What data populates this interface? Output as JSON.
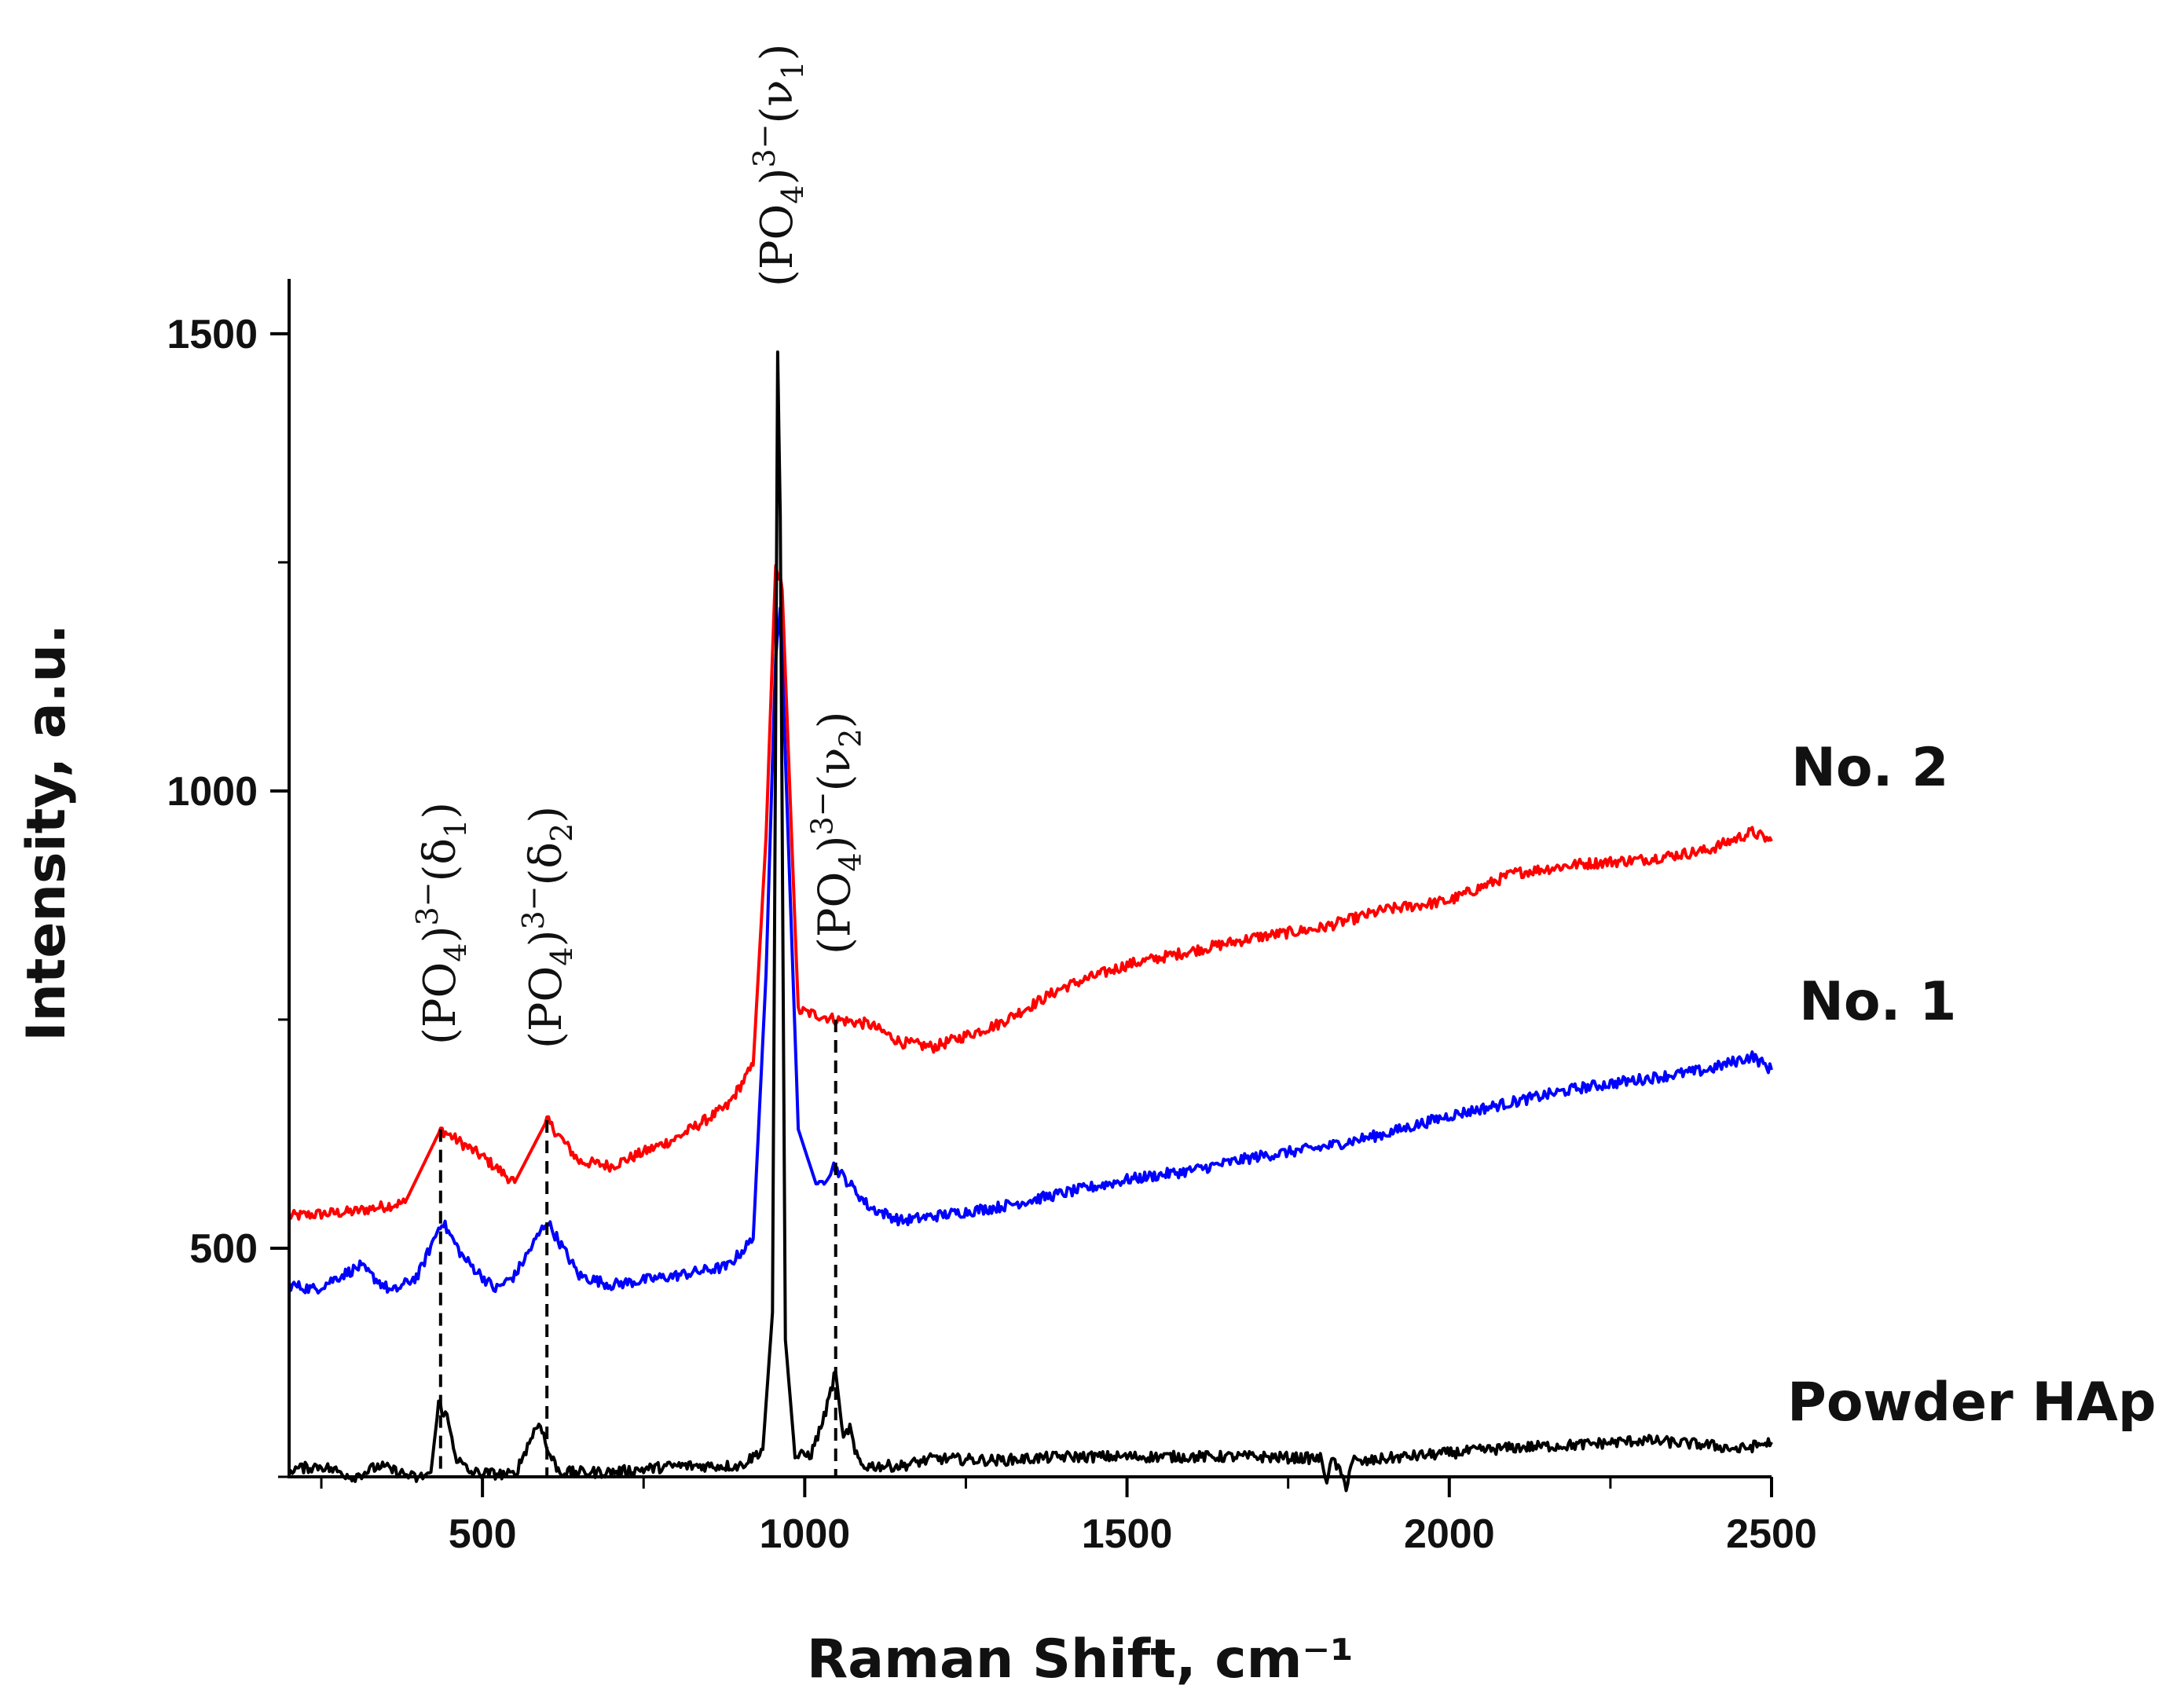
{
  "chart_data": {
    "type": "line",
    "title": "",
    "xlabel": "Raman Shift, cm⁻¹",
    "ylabel": "Intensity, a.u.",
    "xlim": [
      200,
      2500
    ],
    "ylim": [
      250,
      1560
    ],
    "x_ticks": [
      500,
      1000,
      1500,
      2000,
      2500
    ],
    "x_tick_labels": [
      "500",
      "1000",
      "1500",
      "2000",
      "2500"
    ],
    "y_ticks": [
      500,
      1000,
      1500
    ],
    "y_tick_labels": [
      "500",
      "1000",
      "1500"
    ],
    "grid": false,
    "series": [
      {
        "name": "No. 2",
        "color": "#ff0000",
        "x": [
          200,
          300,
          380,
          435,
          500,
          550,
          600,
          650,
          700,
          800,
          880,
          920,
          940,
          955,
          965,
          990,
          1050,
          1100,
          1150,
          1200,
          1300,
          1400,
          1500,
          1600,
          1700,
          1800,
          1900,
          2000,
          2100,
          2200,
          2300,
          2400,
          2470,
          2500
        ],
        "values": [
          535,
          540,
          550,
          630,
          600,
          572,
          640,
          595,
          590,
          620,
          655,
          700,
          950,
          1250,
          1220,
          760,
          750,
          745,
          725,
          720,
          745,
          785,
          810,
          825,
          840,
          850,
          870,
          880,
          910,
          920,
          925,
          935,
          955,
          945
        ]
      },
      {
        "name": "No. 1",
        "color": "#0000ff",
        "x": [
          200,
          240,
          280,
          310,
          360,
          400,
          437,
          470,
          520,
          550,
          600,
          650,
          700,
          800,
          880,
          920,
          940,
          955,
          962,
          990,
          1020,
          1045,
          1070,
          1100,
          1150,
          1200,
          1300,
          1400,
          1500,
          1600,
          1700,
          1800,
          1900,
          2000,
          2100,
          2200,
          2300,
          2400,
          2470,
          2500
        ],
        "values": [
          460,
          455,
          470,
          480,
          452,
          470,
          530,
          490,
          455,
          470,
          530,
          470,
          460,
          470,
          480,
          510,
          800,
          1150,
          1200,
          630,
          565,
          590,
          570,
          545,
          530,
          535,
          545,
          560,
          575,
          585,
          600,
          610,
          625,
          645,
          660,
          675,
          685,
          695,
          710,
          695
        ]
      },
      {
        "name": "Powder HAp",
        "color": "#000000",
        "x": [
          200,
          250,
          300,
          340,
          400,
          420,
          432,
          445,
          460,
          480,
          550,
          580,
          590,
          600,
          620,
          700,
          800,
          900,
          935,
          950,
          958,
          962,
          970,
          985,
          1010,
          1030,
          1048,
          1060,
          1070,
          1078,
          1090,
          1150,
          1200,
          1300,
          1400,
          1500,
          1600,
          1700,
          1800,
          1810,
          1820,
          1840,
          1850,
          1860,
          1900,
          2000,
          2100,
          2200,
          2300,
          2400,
          2450,
          2500
        ],
        "values": [
          258,
          262,
          250,
          262,
          248,
          255,
          330,
          315,
          270,
          255,
          252,
          300,
          310,
          280,
          255,
          255,
          262,
          262,
          280,
          430,
          1480,
          1300,
          400,
          272,
          275,
          315,
          365,
          290,
          305,
          275,
          262,
          262,
          270,
          268,
          272,
          272,
          272,
          272,
          270,
          248,
          270,
          240,
          270,
          265,
          270,
          276,
          282,
          285,
          290,
          285,
          280,
          288
        ]
      }
    ],
    "annotations": [
      {
        "text_main": "(PO",
        "text_sub": "4",
        "text_sup": "3−",
        "text_paren": "(δ",
        "text_psub": "1",
        "text_end": ")",
        "x": 435,
        "line_from": 250,
        "line_to": 630
      },
      {
        "text_main": "(PO",
        "text_sub": "4",
        "text_sup": "3−",
        "text_paren": "(δ",
        "text_psub": "2",
        "text_end": ")",
        "x": 600,
        "line_from": 250,
        "line_to": 640
      },
      {
        "text_main": "(PO",
        "text_sub": "4",
        "text_sup": "3−",
        "text_paren": "(ν",
        "text_psub": "1",
        "text_end": ")",
        "x": 958,
        "line_from": null,
        "line_to": null
      },
      {
        "text_main": "(PO",
        "text_sub": "4",
        "text_sup": "3−",
        "text_paren": "(ν",
        "text_psub": "2",
        "text_end": ")",
        "x": 1048,
        "line_from": 250,
        "line_to": 750
      }
    ]
  }
}
